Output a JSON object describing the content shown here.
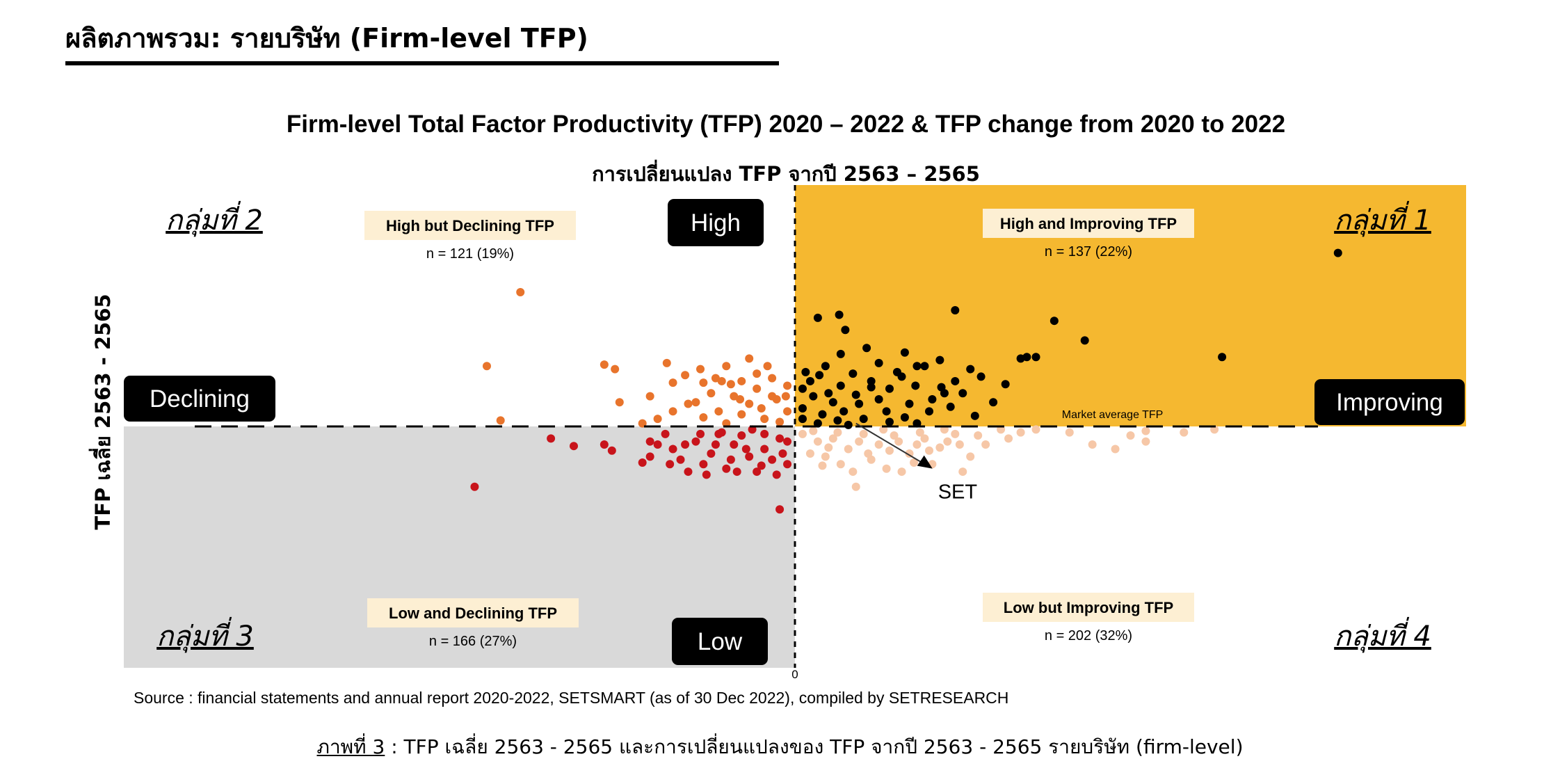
{
  "page": {
    "heading": "ผลิตภาพรวม: รายบริษัท (Firm-level TFP)",
    "caption_lead": "ภาพที่ 3",
    "caption_rest": " : TFP เฉลี่ย 2563 - 2565 และการเปลี่ยนแปลงของ TFP จากปี 2563 - 2565 รายบริษัท (firm-level)"
  },
  "chart_data": {
    "type": "scatter",
    "title": "Firm-level Total Factor Productivity (TFP) 2020 – 2022 & TFP change from 2020 to 2022",
    "subtitle": "การเปลี่ยนแปลง TFP จากปี 2563 – 2565",
    "ylabel": "TFP เฉลี่ย 2563 - 2565",
    "xlabel": "",
    "x_ticks": [
      "0"
    ],
    "source": "Source : financial statements and annual report 2020-2022, SETSMART (as of 30 Dec 2022), compiled by SETRESEARCH",
    "axis_labels": {
      "top": "High",
      "bottom": "Low",
      "left": "Declining",
      "right": "Improving"
    },
    "market_average_label": "Market average TFP",
    "set_label": "SET",
    "set_point": [
      0.4,
      0.02
    ],
    "xlim": [
      -4.4,
      4.4
    ],
    "ylim": [
      -1.6,
      1.6
    ],
    "groups": [
      {
        "corner": "กลุ่มที่ 1",
        "name": "High and Improving TFP",
        "n": "n = 137 (22%)",
        "color": "#000000",
        "bg": "#f5b830"
      },
      {
        "corner": "กลุ่มที่ 2",
        "name": "High but Declining TFP",
        "n": "n = 121 (19%)",
        "color": "#e8742c",
        "bg": "#ffffff"
      },
      {
        "corner": "กลุ่มที่ 3",
        "name": "Low and Declining TFP",
        "n": "n = 166 (27%)",
        "color": "#c8141b",
        "bg": "#d9d9d9"
      },
      {
        "corner": "กลุ่มที่ 4",
        "name": "Low but Improving TFP",
        "n": "n = 202 (32%)",
        "color": "#f6c7a7",
        "bg": "#ffffff"
      }
    ],
    "series": [
      {
        "group": 1,
        "points": [
          [
            3.56,
            1.15
          ],
          [
            0.15,
            0.72
          ],
          [
            0.29,
            0.74
          ],
          [
            0.33,
            0.64
          ],
          [
            1.05,
            0.77
          ],
          [
            1.7,
            0.7
          ],
          [
            1.9,
            0.57
          ],
          [
            1.52,
            0.46
          ],
          [
            1.48,
            0.45
          ],
          [
            1.58,
            0.46
          ],
          [
            2.8,
            0.46
          ],
          [
            0.3,
            0.48
          ],
          [
            0.47,
            0.52
          ],
          [
            0.72,
            0.49
          ],
          [
            0.8,
            0.4
          ],
          [
            0.67,
            0.36
          ],
          [
            0.2,
            0.4
          ],
          [
            0.1,
            0.3
          ],
          [
            0.3,
            0.27
          ],
          [
            0.5,
            0.3
          ],
          [
            0.62,
            0.25
          ],
          [
            0.79,
            0.27
          ],
          [
            0.96,
            0.26
          ],
          [
            1.05,
            0.3
          ],
          [
            1.1,
            0.22
          ],
          [
            0.9,
            0.18
          ],
          [
            0.75,
            0.15
          ],
          [
            0.55,
            0.18
          ],
          [
            0.4,
            0.21
          ],
          [
            0.25,
            0.16
          ],
          [
            0.12,
            0.2
          ],
          [
            0.05,
            0.25
          ],
          [
            0.05,
            0.12
          ],
          [
            0.18,
            0.08
          ],
          [
            0.32,
            0.1
          ],
          [
            0.45,
            0.05
          ],
          [
            0.6,
            0.1
          ],
          [
            0.72,
            0.06
          ],
          [
            0.88,
            0.1
          ],
          [
            1.02,
            0.13
          ],
          [
            1.18,
            0.07
          ],
          [
            1.3,
            0.16
          ],
          [
            0.98,
            0.22
          ],
          [
            0.16,
            0.34
          ],
          [
            0.38,
            0.35
          ],
          [
            0.55,
            0.42
          ],
          [
            0.85,
            0.4
          ],
          [
            0.95,
            0.44
          ],
          [
            0.07,
            0.36
          ],
          [
            0.42,
            0.15
          ],
          [
            0.62,
            0.03
          ],
          [
            0.28,
            0.04
          ],
          [
            0.8,
            0.02
          ],
          [
            0.15,
            0.02
          ],
          [
            0.5,
            0.26
          ],
          [
            0.7,
            0.33
          ],
          [
            1.22,
            0.33
          ],
          [
            1.38,
            0.28
          ],
          [
            0.22,
            0.22
          ],
          [
            0.35,
            0.01
          ],
          [
            1.15,
            0.38
          ],
          [
            0.05,
            0.05
          ]
        ]
      },
      {
        "group": 2,
        "points": [
          [
            -1.8,
            0.89
          ],
          [
            -1.93,
            0.04
          ],
          [
            -2.02,
            0.4
          ],
          [
            -1.25,
            0.41
          ],
          [
            -1.15,
            0.16
          ],
          [
            -1.18,
            0.38
          ],
          [
            -0.95,
            0.2
          ],
          [
            -0.65,
            0.16
          ],
          [
            -0.8,
            0.29
          ],
          [
            -0.6,
            0.29
          ],
          [
            -0.45,
            0.4
          ],
          [
            -0.35,
            0.3
          ],
          [
            -0.25,
            0.25
          ],
          [
            -0.15,
            0.2
          ],
          [
            -0.05,
            0.1
          ],
          [
            -0.4,
            0.2
          ],
          [
            -0.5,
            0.1
          ],
          [
            -0.6,
            0.06
          ],
          [
            -0.7,
            0.15
          ],
          [
            -0.3,
            0.15
          ],
          [
            -0.2,
            0.05
          ],
          [
            -0.1,
            0.03
          ],
          [
            -0.55,
            0.22
          ],
          [
            -0.35,
            0.08
          ],
          [
            -0.45,
            0.02
          ],
          [
            -0.25,
            0.35
          ],
          [
            -0.15,
            0.32
          ],
          [
            -0.05,
            0.27
          ],
          [
            -0.3,
            0.45
          ],
          [
            -0.52,
            0.32
          ],
          [
            -0.42,
            0.28
          ],
          [
            -0.8,
            0.1
          ],
          [
            -0.9,
            0.05
          ],
          [
            -1.0,
            0.02
          ],
          [
            -0.22,
            0.12
          ],
          [
            -0.12,
            0.18
          ],
          [
            -0.62,
            0.38
          ],
          [
            -0.72,
            0.34
          ],
          [
            -0.84,
            0.42
          ],
          [
            -0.06,
            0.2
          ],
          [
            -0.36,
            0.18
          ],
          [
            -0.48,
            0.3
          ],
          [
            -0.18,
            0.4
          ]
        ]
      },
      {
        "group": 3,
        "points": [
          [
            -2.1,
            -0.4
          ],
          [
            -1.6,
            -0.08
          ],
          [
            -1.45,
            -0.13
          ],
          [
            -1.25,
            -0.12
          ],
          [
            -1.2,
            -0.16
          ],
          [
            -0.1,
            -0.55
          ],
          [
            -0.95,
            -0.2
          ],
          [
            -0.8,
            -0.15
          ],
          [
            -0.65,
            -0.1
          ],
          [
            -0.5,
            -0.05
          ],
          [
            -0.4,
            -0.12
          ],
          [
            -0.3,
            -0.2
          ],
          [
            -0.2,
            -0.15
          ],
          [
            -0.1,
            -0.08
          ],
          [
            -0.05,
            -0.25
          ],
          [
            -0.6,
            -0.25
          ],
          [
            -0.7,
            -0.3
          ],
          [
            -0.55,
            -0.18
          ],
          [
            -0.45,
            -0.28
          ],
          [
            -0.35,
            -0.06
          ],
          [
            -0.25,
            -0.3
          ],
          [
            -0.15,
            -0.22
          ],
          [
            -0.85,
            -0.05
          ],
          [
            -0.75,
            -0.22
          ],
          [
            -0.9,
            -0.12
          ],
          [
            -0.05,
            -0.1
          ],
          [
            -0.2,
            -0.05
          ],
          [
            -0.32,
            -0.15
          ],
          [
            -0.42,
            -0.22
          ],
          [
            -0.52,
            -0.12
          ],
          [
            -0.62,
            -0.05
          ],
          [
            -0.72,
            -0.12
          ],
          [
            -0.82,
            -0.25
          ],
          [
            -0.12,
            -0.32
          ],
          [
            -0.22,
            -0.26
          ],
          [
            -0.38,
            -0.3
          ],
          [
            -0.48,
            -0.04
          ],
          [
            -0.58,
            -0.32
          ],
          [
            -0.28,
            -0.02
          ],
          [
            -0.08,
            -0.18
          ],
          [
            -0.95,
            -0.1
          ],
          [
            -1.0,
            -0.24
          ]
        ]
      },
      {
        "group": 4,
        "points": [
          [
            0.4,
            -0.4
          ],
          [
            0.9,
            -0.25
          ],
          [
            1.1,
            -0.3
          ],
          [
            1.25,
            -0.12
          ],
          [
            1.48,
            -0.04
          ],
          [
            1.58,
            -0.02
          ],
          [
            1.8,
            -0.04
          ],
          [
            2.2,
            -0.06
          ],
          [
            2.3,
            -0.1
          ],
          [
            1.95,
            -0.12
          ],
          [
            2.1,
            -0.15
          ],
          [
            2.3,
            -0.03
          ],
          [
            2.55,
            -0.04
          ],
          [
            2.75,
            -0.02
          ],
          [
            0.05,
            -0.05
          ],
          [
            0.15,
            -0.1
          ],
          [
            0.25,
            -0.08
          ],
          [
            0.35,
            -0.15
          ],
          [
            0.45,
            -0.05
          ],
          [
            0.55,
            -0.12
          ],
          [
            0.65,
            -0.06
          ],
          [
            0.75,
            -0.18
          ],
          [
            0.85,
            -0.08
          ],
          [
            0.95,
            -0.14
          ],
          [
            1.05,
            -0.05
          ],
          [
            1.15,
            -0.2
          ],
          [
            0.1,
            -0.18
          ],
          [
            0.2,
            -0.2
          ],
          [
            0.3,
            -0.25
          ],
          [
            0.5,
            -0.22
          ],
          [
            0.6,
            -0.28
          ],
          [
            0.7,
            -0.3
          ],
          [
            0.8,
            -0.12
          ],
          [
            0.12,
            -0.03
          ],
          [
            0.22,
            -0.14
          ],
          [
            0.42,
            -0.1
          ],
          [
            0.62,
            -0.16
          ],
          [
            0.82,
            -0.04
          ],
          [
            1.0,
            -0.1
          ],
          [
            1.2,
            -0.06
          ],
          [
            1.35,
            -0.02
          ],
          [
            0.18,
            -0.26
          ],
          [
            0.38,
            -0.3
          ],
          [
            0.58,
            -0.02
          ],
          [
            0.78,
            -0.24
          ],
          [
            0.98,
            -0.02
          ],
          [
            1.4,
            -0.08
          ],
          [
            0.28,
            -0.04
          ],
          [
            0.48,
            -0.18
          ],
          [
            0.68,
            -0.1
          ],
          [
            0.88,
            -0.16
          ],
          [
            1.08,
            -0.12
          ]
        ]
      }
    ]
  }
}
